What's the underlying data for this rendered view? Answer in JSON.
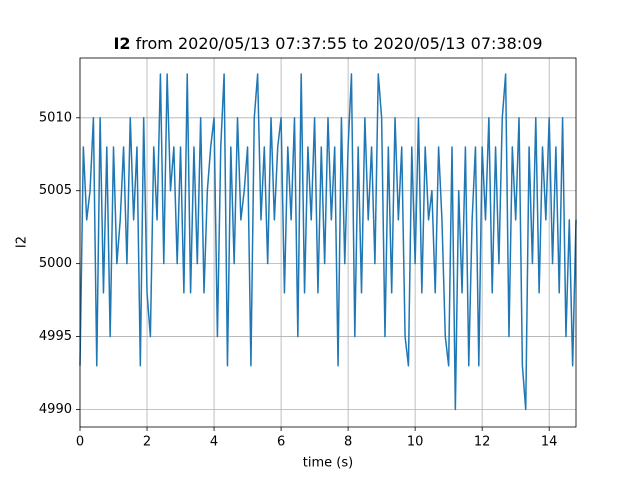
{
  "chart_data": {
    "type": "line",
    "title": {
      "bold": "I2",
      "rest": "from 2020/05/13 07:37:55 to 2020/05/13 07:38:09"
    },
    "xlabel": "time (s)",
    "ylabel": "I2",
    "x": [
      0,
      0.1,
      0.2,
      0.3,
      0.4,
      0.5,
      0.6,
      0.7,
      0.8,
      0.9,
      1,
      1.1,
      1.2,
      1.3,
      1.4,
      1.5,
      1.6,
      1.7,
      1.8,
      1.9,
      2,
      2.1,
      2.2,
      2.3,
      2.4,
      2.5,
      2.6,
      2.7,
      2.8,
      2.9,
      3,
      3.1,
      3.2,
      3.3,
      3.4,
      3.5,
      3.6,
      3.7,
      3.8,
      3.9,
      4,
      4.1,
      4.2,
      4.3,
      4.4,
      4.5,
      4.6,
      4.7,
      4.8,
      4.9,
      5,
      5.1,
      5.2,
      5.3,
      5.4,
      5.5,
      5.6,
      5.7,
      5.8,
      5.9,
      6,
      6.1,
      6.2,
      6.3,
      6.4,
      6.5,
      6.6,
      6.7,
      6.8,
      6.9,
      7,
      7.1,
      7.2,
      7.3,
      7.4,
      7.5,
      7.6,
      7.7,
      7.8,
      7.9,
      8,
      8.1,
      8.2,
      8.3,
      8.4,
      8.5,
      8.6,
      8.7,
      8.8,
      8.9,
      9,
      9.1,
      9.2,
      9.3,
      9.4,
      9.5,
      9.6,
      9.7,
      9.8,
      9.9,
      10,
      10.1,
      10.2,
      10.3,
      10.4,
      10.5,
      10.6,
      10.7,
      10.8,
      10.9,
      11,
      11.1,
      11.2,
      11.3,
      11.4,
      11.5,
      11.6,
      11.7,
      11.8,
      11.9,
      12,
      12.1,
      12.2,
      12.3,
      12.4,
      12.5,
      12.6,
      12.7,
      12.8,
      12.9,
      13,
      13.1,
      13.2,
      13.3,
      13.4,
      13.5,
      13.6,
      13.7,
      13.8,
      13.9,
      14,
      14.1,
      14.2,
      14.3,
      14.4,
      14.5,
      14.6,
      14.7,
      14.8
    ],
    "series": [
      {
        "name": "I2",
        "color": "#1f77b4",
        "values": [
          4993,
          5008,
          5003,
          5005,
          5010,
          4993,
          5010,
          4998,
          5008,
          4995,
          5008,
          5000,
          5003,
          5008,
          5000,
          5010,
          5003,
          5008,
          4993,
          5010,
          4998,
          4995,
          5008,
          5003,
          5013,
          5000,
          5013,
          5005,
          5008,
          5000,
          5008,
          4998,
          5013,
          4998,
          5008,
          5000,
          5010,
          4998,
          5005,
          5008,
          5010,
          4995,
          5008,
          5013,
          4993,
          5008,
          5000,
          5010,
          5003,
          5005,
          5008,
          4993,
          5010,
          5013,
          5003,
          5008,
          5000,
          5010,
          5003,
          5008,
          5010,
          4998,
          5008,
          5003,
          5010,
          4995,
          5013,
          4998,
          5008,
          5003,
          5010,
          4998,
          5008,
          5000,
          5010,
          5003,
          5008,
          4993,
          5010,
          5000,
          5008,
          5013,
          4995,
          5008,
          4998,
          5010,
          5003,
          5008,
          5000,
          5013,
          5010,
          4995,
          5008,
          4998,
          5010,
          5003,
          5008,
          4995,
          4993,
          5008,
          5000,
          5010,
          4998,
          5008,
          5003,
          5005,
          4998,
          5008,
          5003,
          4995,
          4993,
          5008,
          4990,
          5005,
          4998,
          5008,
          4993,
          5003,
          5008,
          4993,
          5008,
          5003,
          5010,
          4998,
          5008,
          5000,
          5010,
          5013,
          4995,
          5008,
          5003,
          5010,
          4993,
          4990,
          5008,
          5000,
          5010,
          4998,
          5008,
          5003,
          5010,
          5000,
          5008,
          4998,
          5010,
          4995,
          5003,
          4993,
          5003
        ]
      }
    ],
    "xlim": [
      0,
      14.8
    ],
    "ylim": [
      4988.8,
      5014.1
    ],
    "xticks": [
      0,
      2,
      4,
      6,
      8,
      10,
      12,
      14
    ],
    "yticks": [
      4990,
      4995,
      5000,
      5005,
      5010
    ],
    "grid": true
  }
}
